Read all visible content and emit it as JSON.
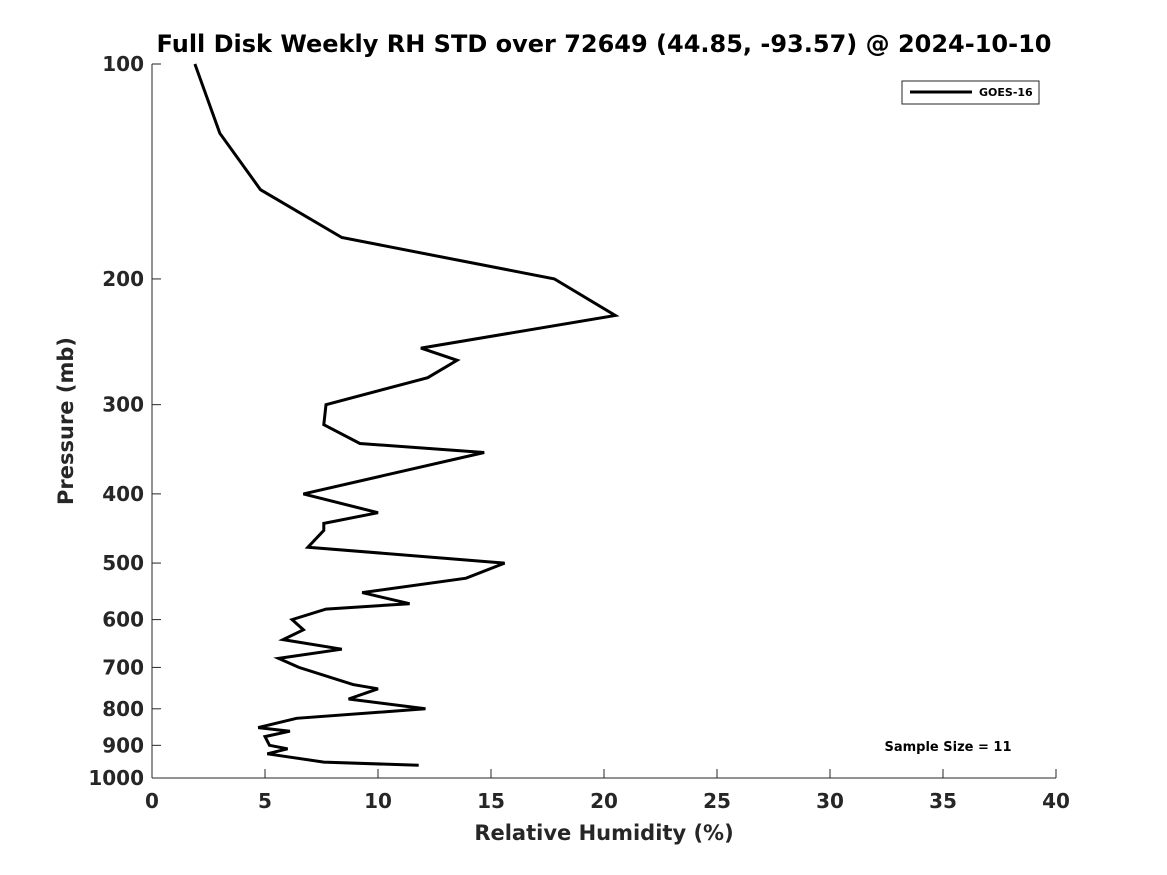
{
  "chart_data": {
    "type": "line",
    "title": "Full Disk Weekly RH STD over 72649 (44.85, -93.57) @ 2024-10-10",
    "xlabel": "Relative Humidity (%)",
    "ylabel": "Pressure (mb)",
    "xlim": [
      0,
      40
    ],
    "ylim": [
      100,
      1000
    ],
    "y_scale": "log",
    "y_reversed": true,
    "x_ticks": [
      "0",
      "5",
      "10",
      "15",
      "20",
      "25",
      "30",
      "35",
      "40"
    ],
    "y_ticks": [
      "100",
      "200",
      "300",
      "400",
      "500",
      "600",
      "700",
      "800",
      "900",
      "1000"
    ],
    "grid": false,
    "legend_position": "top-right",
    "annotation": "Sample Size = 11",
    "series": [
      {
        "name": "GOES-16",
        "color": "#000000",
        "points": [
          [
            1.9,
            100
          ],
          [
            3.0,
            125
          ],
          [
            4.8,
            150
          ],
          [
            8.4,
            175
          ],
          [
            17.8,
            200
          ],
          [
            20.5,
            225
          ],
          [
            11.9,
            250
          ],
          [
            13.5,
            260
          ],
          [
            12.2,
            275
          ],
          [
            7.7,
            300
          ],
          [
            7.6,
            320
          ],
          [
            9.2,
            340
          ],
          [
            14.7,
            350
          ],
          [
            6.7,
            400
          ],
          [
            10.0,
            425
          ],
          [
            7.6,
            440
          ],
          [
            7.6,
            450
          ],
          [
            6.9,
            475
          ],
          [
            15.6,
            500
          ],
          [
            13.9,
            525
          ],
          [
            9.3,
            550
          ],
          [
            11.4,
            570
          ],
          [
            7.7,
            580
          ],
          [
            6.2,
            600
          ],
          [
            6.7,
            620
          ],
          [
            5.8,
            640
          ],
          [
            8.4,
            660
          ],
          [
            5.6,
            680
          ],
          [
            6.5,
            700
          ],
          [
            8.9,
            740
          ],
          [
            10.0,
            750
          ],
          [
            8.7,
            775
          ],
          [
            12.1,
            800
          ],
          [
            6.4,
            825
          ],
          [
            4.7,
            850
          ],
          [
            6.1,
            860
          ],
          [
            5.0,
            875
          ],
          [
            5.2,
            900
          ],
          [
            6.0,
            910
          ],
          [
            5.1,
            925
          ],
          [
            7.6,
            950
          ],
          [
            11.8,
            960
          ]
        ]
      }
    ]
  }
}
